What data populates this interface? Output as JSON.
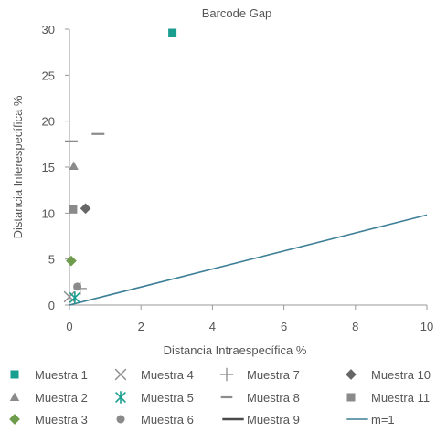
{
  "chart_data": {
    "type": "scatter",
    "title": "Barcode Gap",
    "xlabel": "Distancia Intraespecífica %",
    "ylabel": "Distancia Interespecífica %",
    "xlim": [
      0,
      10
    ],
    "ylim": [
      0,
      30
    ],
    "x_ticks": [
      "0",
      "2",
      "4",
      "6",
      "8",
      "10"
    ],
    "y_ticks": [
      "0",
      "5",
      "10",
      "15",
      "20",
      "25",
      "30"
    ],
    "grid": false,
    "legend_position": "bottom",
    "series": [
      {
        "name": "Muestra 1",
        "marker": "square",
        "color": "#1a9e8f",
        "points": [
          [
            2.88,
            29.6
          ]
        ]
      },
      {
        "name": "Muestra 2",
        "marker": "triangle",
        "color": "#8a8a8a",
        "points": [
          [
            0.12,
            15.1
          ]
        ]
      },
      {
        "name": "Muestra 3",
        "marker": "diamond",
        "color": "#6f9b4c",
        "points": [
          [
            0.05,
            4.8
          ]
        ]
      },
      {
        "name": "Muestra 4",
        "marker": "x",
        "color": "#8c8c8c",
        "points": [
          [
            0.0,
            0.9
          ]
        ]
      },
      {
        "name": "Muestra 5",
        "marker": "asterisk",
        "color": "#1a9e8f",
        "points": [
          [
            0.15,
            0.8
          ]
        ]
      },
      {
        "name": "Muestra 6",
        "marker": "circle",
        "color": "#8a8a8a",
        "points": [
          [
            0.22,
            2.0
          ]
        ]
      },
      {
        "name": "Muestra 7",
        "marker": "plus",
        "color": "#8c8c8c",
        "points": [
          [
            0.3,
            1.8
          ]
        ]
      },
      {
        "name": "Muestra 8",
        "marker": "dash",
        "color": "#8c8c8c",
        "points": [
          [
            0.8,
            18.6
          ],
          [
            0.05,
            17.8
          ]
        ]
      },
      {
        "name": "Muestra 9",
        "marker": "longdash",
        "color": "#4a4a4a",
        "points": []
      },
      {
        "name": "Muestra 10",
        "marker": "diamond",
        "color": "#666666",
        "points": [
          [
            0.45,
            10.5
          ]
        ]
      },
      {
        "name": "Muestra 11",
        "marker": "square",
        "color": "#8a8a8a",
        "points": [
          [
            0.1,
            10.4
          ]
        ]
      },
      {
        "name": "m=1",
        "marker": "line",
        "color": "#3d7f96",
        "points": [
          [
            0,
            0
          ],
          [
            10,
            9.8
          ]
        ]
      }
    ]
  }
}
